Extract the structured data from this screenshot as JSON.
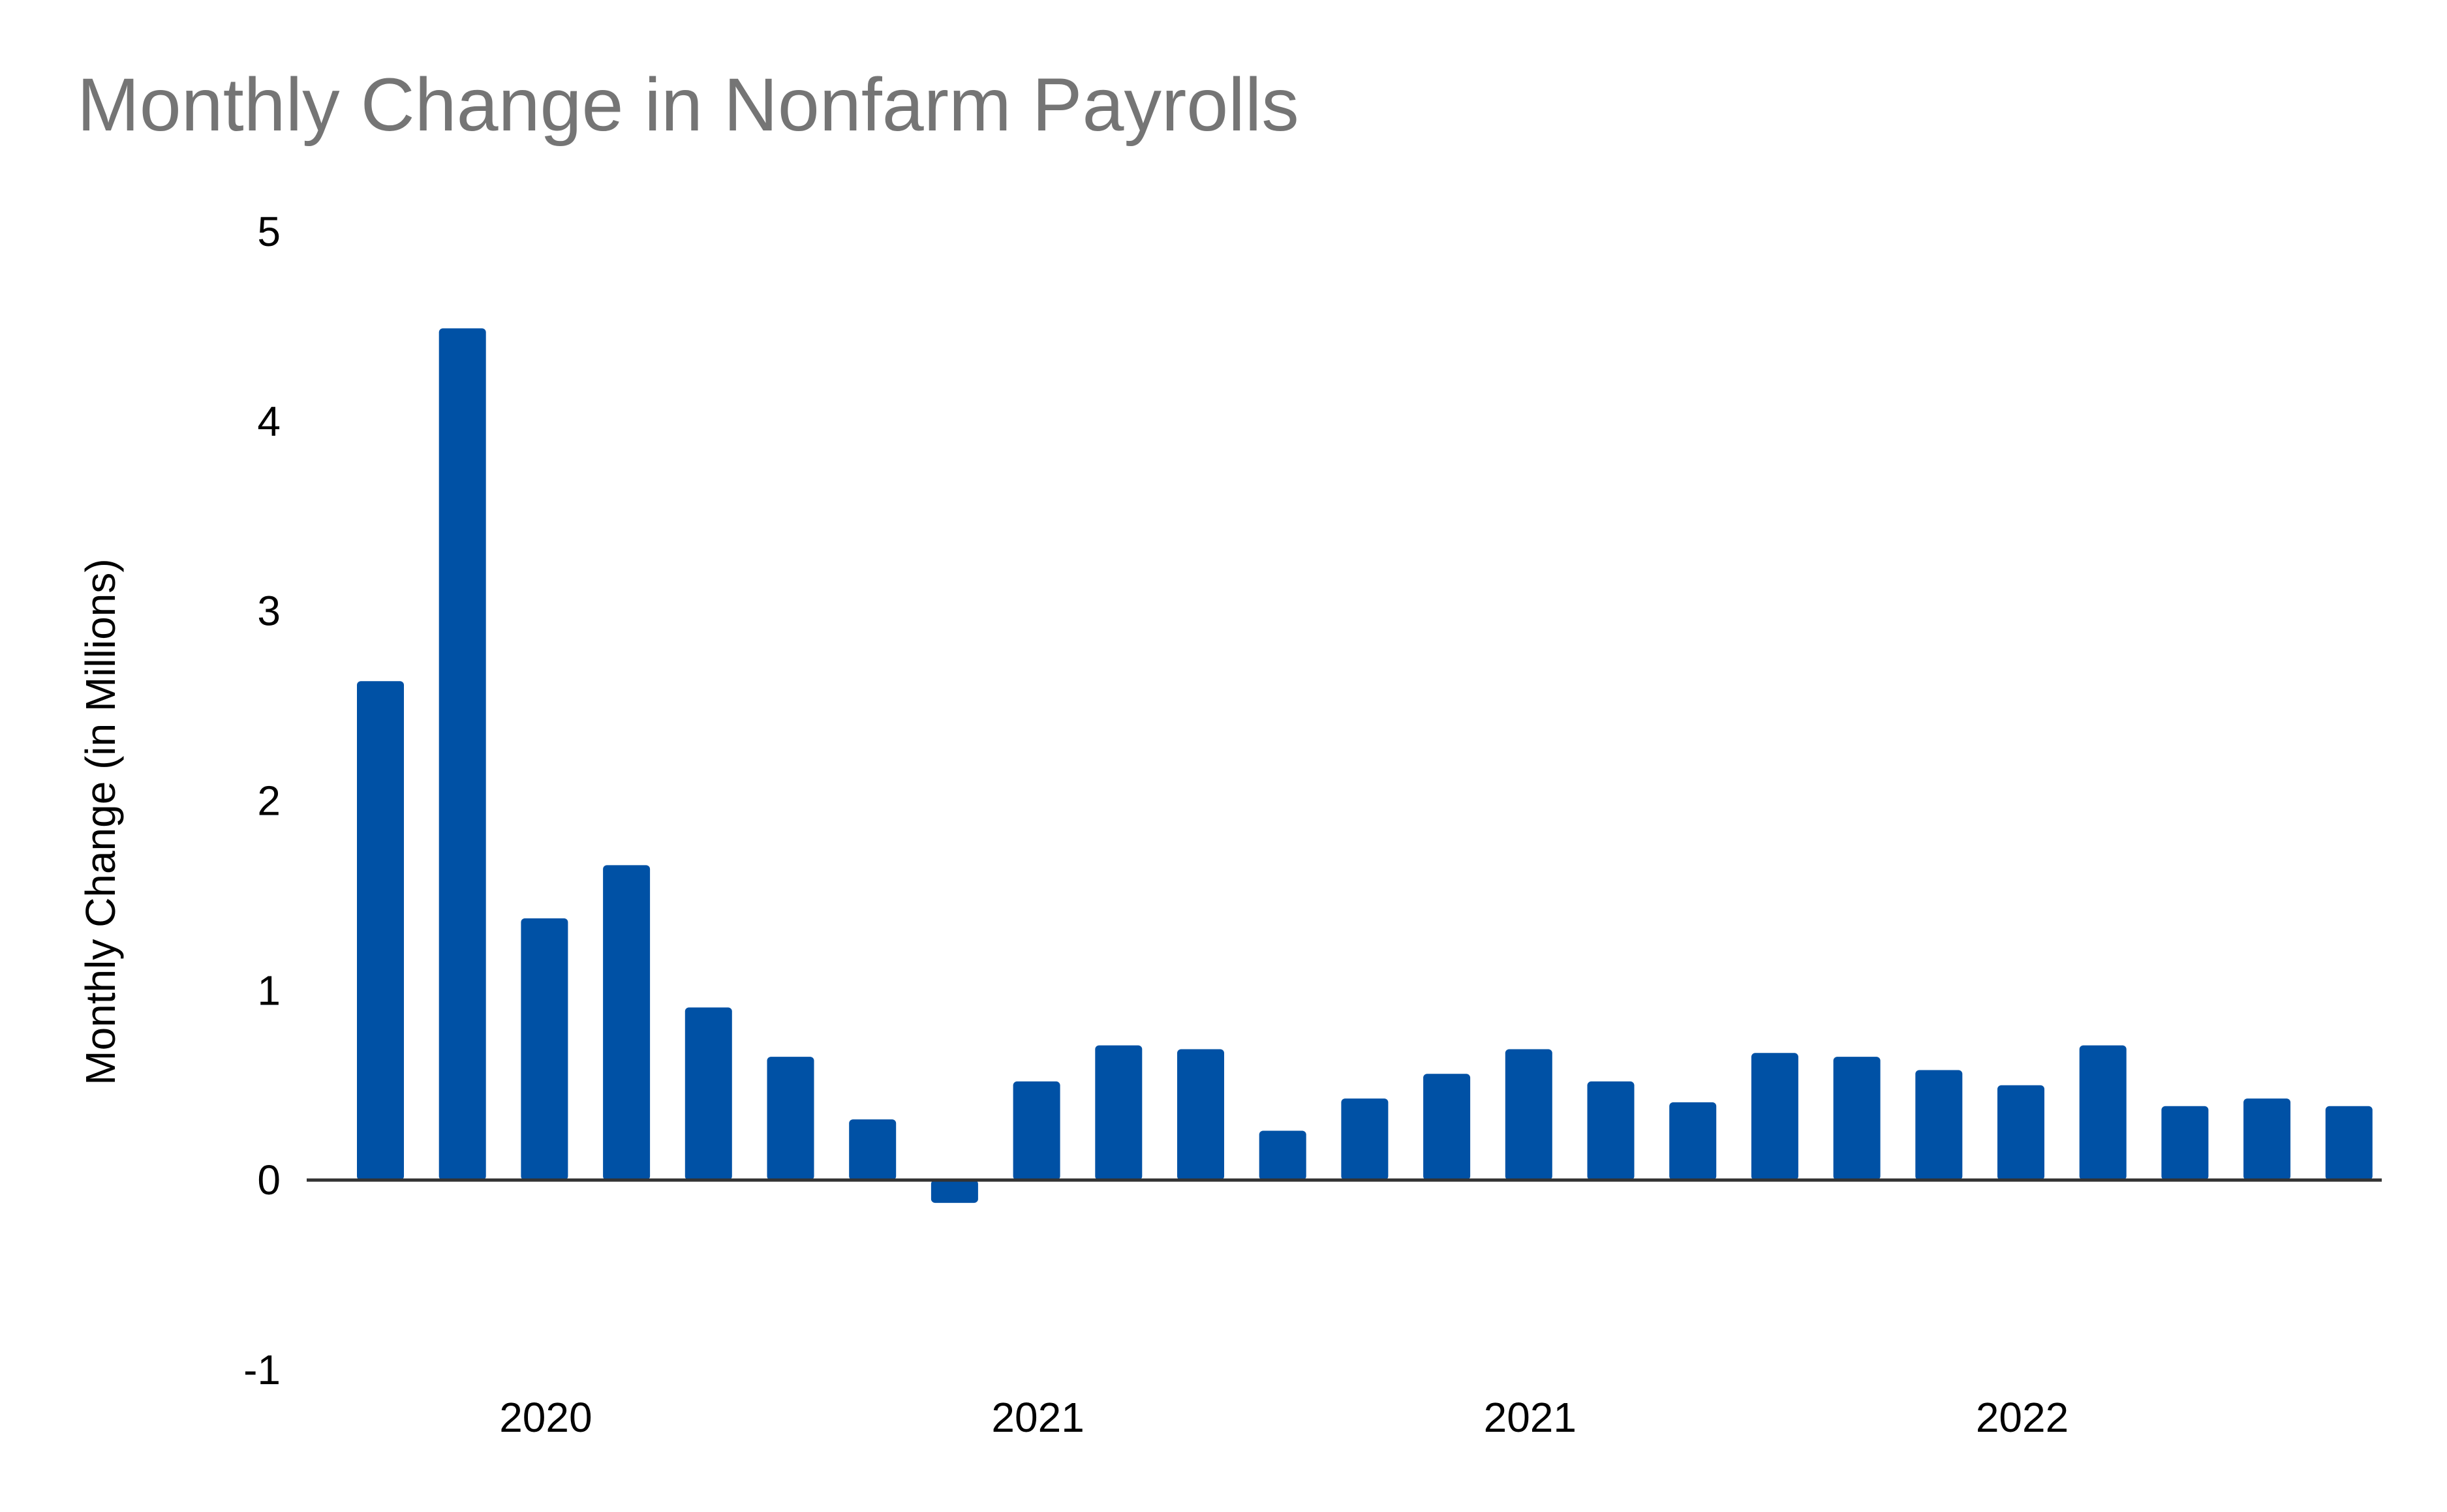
{
  "chart_data": {
    "type": "bar",
    "title": "Monthly Change in Nonfarm Payrolls",
    "xlabel": "",
    "ylabel": "Monthly Change (in Millions)",
    "ylim": [
      -1,
      5
    ],
    "yticks": [
      5,
      4,
      3,
      2,
      1,
      0,
      -1
    ],
    "xtick_labels": [
      {
        "label": "2020",
        "index": 2
      },
      {
        "label": "2021",
        "index": 8
      },
      {
        "label": "2021",
        "index": 14
      },
      {
        "label": "2022",
        "index": 20
      }
    ],
    "values": [
      2.63,
      4.49,
      1.38,
      1.66,
      0.91,
      0.65,
      0.32,
      -0.12,
      0.52,
      0.71,
      0.69,
      0.26,
      0.43,
      0.56,
      0.69,
      0.52,
      0.41,
      0.67,
      0.65,
      0.58,
      0.5,
      0.71,
      0.39,
      0.43,
      0.39
    ],
    "bar_color": "#0051a5",
    "axis_color": "#333333",
    "grid": false,
    "legend": "none"
  }
}
